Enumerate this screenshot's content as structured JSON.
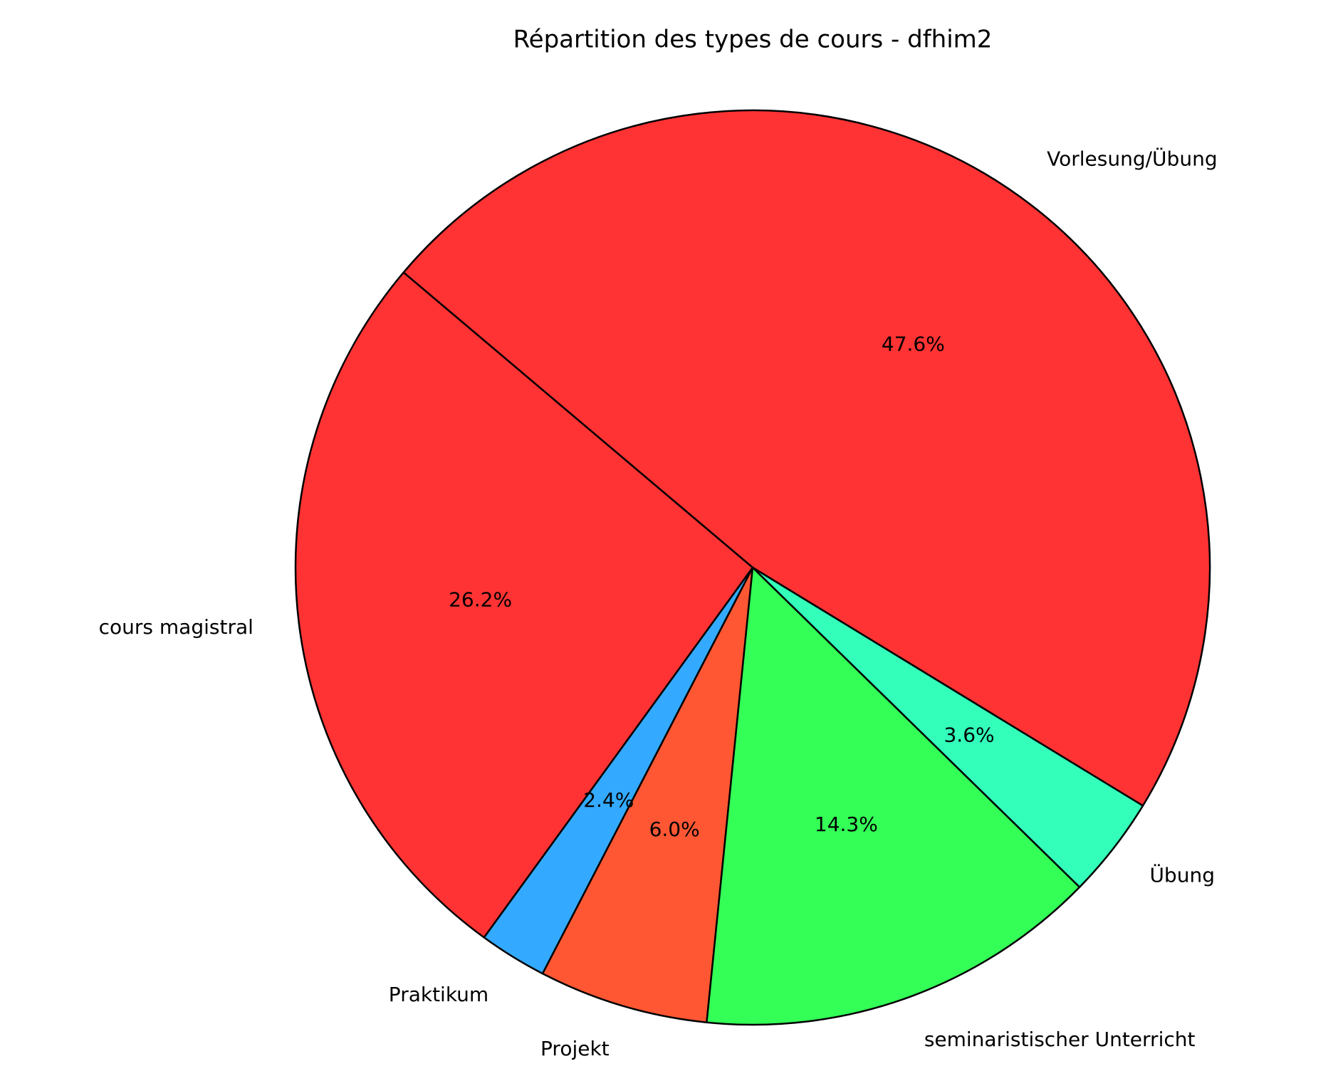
{
  "chart_data": {
    "type": "pie",
    "title": "Répartition des types de cours - dfhim2",
    "categories": [
      "Vorlesung/Übung",
      "cours magistral",
      "Praktikum",
      "Projekt",
      "seminaristischer Unterricht",
      "Übung"
    ],
    "values": [
      47.6,
      26.2,
      2.4,
      6.0,
      14.3,
      3.6
    ],
    "value_labels": [
      "47.6%",
      "26.2%",
      "2.4%",
      "6.0%",
      "14.3%",
      "3.6%"
    ],
    "colors": [
      "#ff3333",
      "#ff3333",
      "#33aaff",
      "#ff5733",
      "#33ff57",
      "#33ffbb"
    ],
    "start_angle": -31.4
  }
}
